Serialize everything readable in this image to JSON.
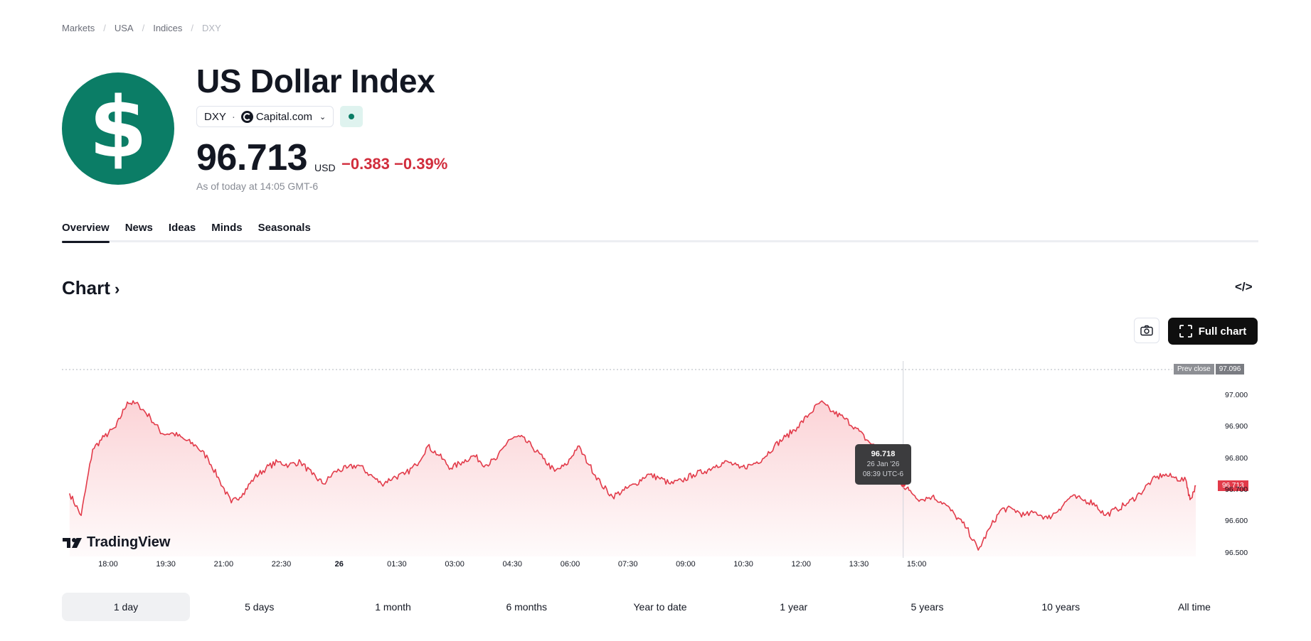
{
  "breadcrumb": [
    "Markets",
    "USA",
    "Indices",
    "DXY"
  ],
  "logo_symbol": "$",
  "title": "US Dollar Index",
  "symbol": {
    "ticker": "DXY",
    "dot": "·",
    "exchange": "Capital.com",
    "icon": "capital-com-icon",
    "dropdown_icon": "chevron-down-icon"
  },
  "market_status": {
    "icon": "market-status-dot-icon",
    "color": "#0b7d66"
  },
  "quote": {
    "price": "96.713",
    "currency": "USD",
    "change": "−0.383",
    "change_pct": "−0.39%",
    "as_of": "As of today at 14:05 GMT-6"
  },
  "tabs": [
    {
      "label": "Overview",
      "active": true
    },
    {
      "label": "News",
      "active": false
    },
    {
      "label": "Ideas",
      "active": false
    },
    {
      "label": "Minds",
      "active": false
    },
    {
      "label": "Seasonals",
      "active": false
    }
  ],
  "chart_section": {
    "heading": "Chart",
    "heading_icon": "chevron-right-icon",
    "embed_icon": "</>",
    "snapshot_icon": "camera-icon",
    "full_chart_label": "Full chart",
    "full_chart_icon": "fullscreen-icon",
    "watermark": "TradingView"
  },
  "colors": {
    "accent": "#0b7d66",
    "negative": "#d12d3c",
    "line": "#e23b4a"
  },
  "chart_data": {
    "type": "area",
    "title": "US Dollar Index — 1 day",
    "x_tick_labels": [
      "18:00",
      "19:30",
      "21:00",
      "22:30",
      "26",
      "01:30",
      "03:00",
      "04:30",
      "06:00",
      "07:30",
      "09:00",
      "10:30",
      "12:00",
      "13:30",
      "15:00"
    ],
    "x_tick_bold": [
      false,
      false,
      false,
      false,
      true,
      false,
      false,
      false,
      false,
      false,
      false,
      false,
      false,
      false,
      false
    ],
    "y_tick_labels": [
      "97.000",
      "96.900",
      "96.800",
      "96.700",
      "96.600",
      "96.500"
    ],
    "y_ticks": [
      97.0,
      96.9,
      96.8,
      96.7,
      96.6,
      96.5
    ],
    "ylim": [
      96.49,
      97.11
    ],
    "x_range_hours": [
      -7.2,
      22.6
    ],
    "series": [
      {
        "name": "DXY",
        "points": [
          [
            -7.0,
            96.69
          ],
          [
            -6.7,
            96.62
          ],
          [
            -6.4,
            96.83
          ],
          [
            -6.1,
            96.87
          ],
          [
            -5.8,
            96.9
          ],
          [
            -5.5,
            96.98
          ],
          [
            -5.2,
            96.97
          ],
          [
            -4.9,
            96.93
          ],
          [
            -4.6,
            96.88
          ],
          [
            -4.3,
            96.88
          ],
          [
            -4.0,
            96.86
          ],
          [
            -3.7,
            96.84
          ],
          [
            -3.4,
            96.8
          ],
          [
            -3.1,
            96.73
          ],
          [
            -2.8,
            96.66
          ],
          [
            -2.5,
            96.69
          ],
          [
            -2.2,
            96.74
          ],
          [
            -1.9,
            96.77
          ],
          [
            -1.6,
            96.79
          ],
          [
            -1.3,
            96.78
          ],
          [
            -1.0,
            96.79
          ],
          [
            -0.7,
            96.75
          ],
          [
            -0.4,
            96.72
          ],
          [
            -0.1,
            96.76
          ],
          [
            0.2,
            96.77
          ],
          [
            0.5,
            96.78
          ],
          [
            0.8,
            96.75
          ],
          [
            1.1,
            96.72
          ],
          [
            1.4,
            96.74
          ],
          [
            1.7,
            96.75
          ],
          [
            2.0,
            96.78
          ],
          [
            2.3,
            96.84
          ],
          [
            2.6,
            96.81
          ],
          [
            2.9,
            96.77
          ],
          [
            3.2,
            96.79
          ],
          [
            3.5,
            96.81
          ],
          [
            3.8,
            96.78
          ],
          [
            4.1,
            96.8
          ],
          [
            4.4,
            96.86
          ],
          [
            4.7,
            96.87
          ],
          [
            5.0,
            96.84
          ],
          [
            5.3,
            96.8
          ],
          [
            5.6,
            96.76
          ],
          [
            5.9,
            96.78
          ],
          [
            6.2,
            96.84
          ],
          [
            6.5,
            96.78
          ],
          [
            6.8,
            96.72
          ],
          [
            7.1,
            96.68
          ],
          [
            7.4,
            96.7
          ],
          [
            7.7,
            96.72
          ],
          [
            8.0,
            96.75
          ],
          [
            8.3,
            96.74
          ],
          [
            8.6,
            96.72
          ],
          [
            8.9,
            96.73
          ],
          [
            9.2,
            96.75
          ],
          [
            9.5,
            96.76
          ],
          [
            9.8,
            96.78
          ],
          [
            10.1,
            96.79
          ],
          [
            10.4,
            96.77
          ],
          [
            10.7,
            96.78
          ],
          [
            11.0,
            96.8
          ],
          [
            11.3,
            96.84
          ],
          [
            11.6,
            96.87
          ],
          [
            11.9,
            96.9
          ],
          [
            12.2,
            96.94
          ],
          [
            12.5,
            96.98
          ],
          [
            12.8,
            96.95
          ],
          [
            13.1,
            96.93
          ],
          [
            13.4,
            96.9
          ],
          [
            13.7,
            96.86
          ],
          [
            14.0,
            96.83
          ],
          [
            14.3,
            96.78
          ],
          [
            14.6,
            96.72
          ],
          [
            14.8,
            96.7
          ],
          [
            15.1,
            96.67
          ],
          [
            15.4,
            96.68
          ],
          [
            15.7,
            96.66
          ],
          [
            16.0,
            96.62
          ],
          [
            16.3,
            96.58
          ],
          [
            16.6,
            96.51
          ],
          [
            16.9,
            96.58
          ],
          [
            17.2,
            96.64
          ],
          [
            17.5,
            96.64
          ],
          [
            17.8,
            96.62
          ],
          [
            18.1,
            96.63
          ],
          [
            18.4,
            96.61
          ],
          [
            18.7,
            96.64
          ],
          [
            19.0,
            96.68
          ],
          [
            19.3,
            96.67
          ],
          [
            19.6,
            96.66
          ],
          [
            19.9,
            96.62
          ],
          [
            20.2,
            96.64
          ],
          [
            20.5,
            96.66
          ],
          [
            20.8,
            96.69
          ],
          [
            21.1,
            96.73
          ],
          [
            21.4,
            96.75
          ],
          [
            21.7,
            96.74
          ],
          [
            22.0,
            96.73
          ],
          [
            22.1,
            96.67
          ],
          [
            22.25,
            96.713
          ]
        ]
      }
    ],
    "prev_close_label": "Prev close",
    "prev_close": "97.096",
    "last_price_badge": "96.713",
    "tooltip": {
      "value": "96.718",
      "date": "26 Jan '26",
      "time": "08:39 UTC-6"
    },
    "crosshair_x_hours": 14.65
  },
  "ranges": [
    {
      "label": "1 day",
      "active": true
    },
    {
      "label": "5 days",
      "active": false
    },
    {
      "label": "1 month",
      "active": false
    },
    {
      "label": "6 months",
      "active": false
    },
    {
      "label": "Year to date",
      "active": false
    },
    {
      "label": "1 year",
      "active": false
    },
    {
      "label": "5 years",
      "active": false
    },
    {
      "label": "10 years",
      "active": false
    },
    {
      "label": "All time",
      "active": false
    }
  ]
}
